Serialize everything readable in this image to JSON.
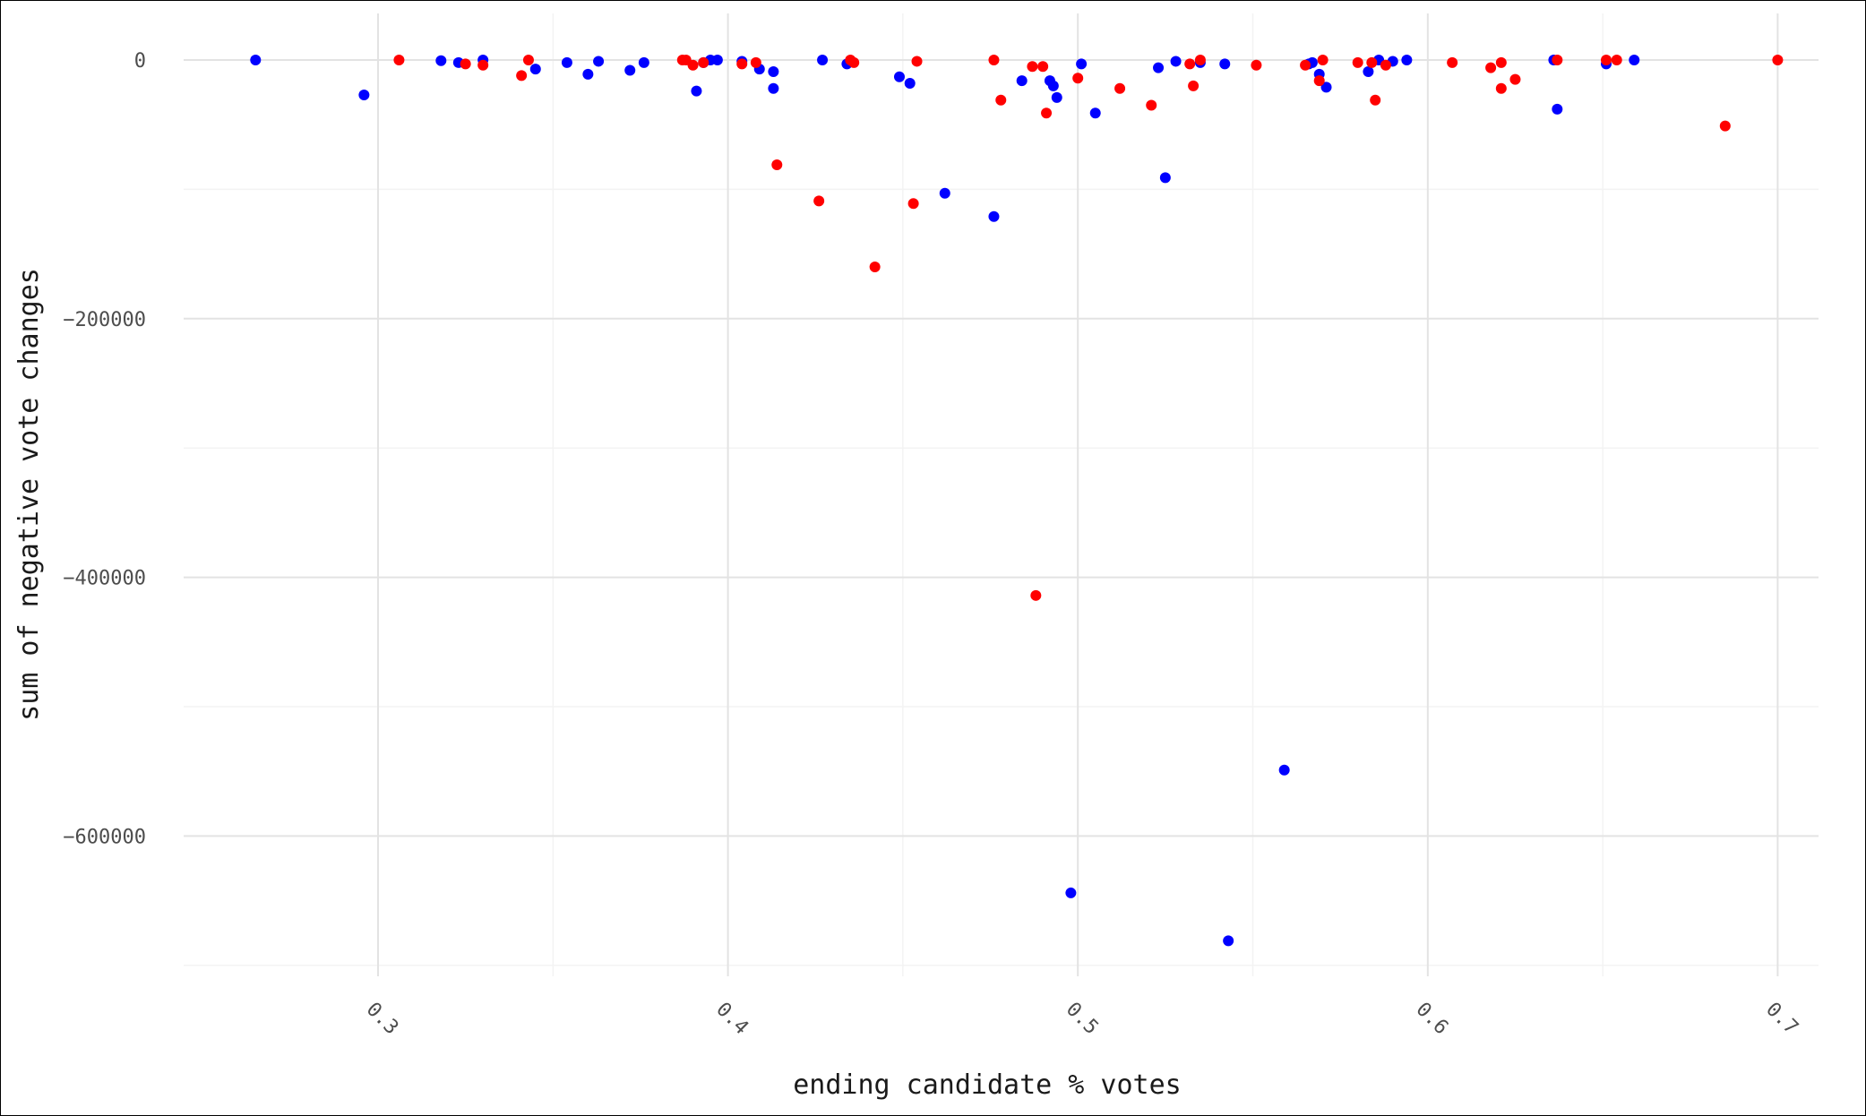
{
  "chart_data": {
    "type": "scatter",
    "xlabel": "ending candidate % votes",
    "ylabel": "sum of negative vote changes",
    "xlim": [
      0.245,
      0.72
    ],
    "ylim": [
      -700000,
      15000
    ],
    "x_major_ticks": [
      0.3,
      0.4,
      0.5,
      0.6,
      0.7
    ],
    "x_tick_labels": [
      "0.3",
      "0.4",
      "0.5",
      "0.6",
      "0.7"
    ],
    "y_major_ticks": [
      0,
      -200000,
      -400000,
      -600000
    ],
    "y_tick_labels": [
      "0",
      "−200000",
      "−400000",
      "−600000"
    ],
    "grid": true,
    "legend": "none",
    "series": [
      {
        "color": "#0000ff",
        "points": [
          [
            0.265,
            0
          ],
          [
            0.296,
            -27000
          ],
          [
            0.318,
            -500
          ],
          [
            0.323,
            -2000
          ],
          [
            0.33,
            0
          ],
          [
            0.345,
            -7000
          ],
          [
            0.354,
            -2000
          ],
          [
            0.36,
            -11000
          ],
          [
            0.363,
            -1000
          ],
          [
            0.372,
            -8000
          ],
          [
            0.376,
            -2000
          ],
          [
            0.391,
            -24000
          ],
          [
            0.393,
            -2000
          ],
          [
            0.395,
            0
          ],
          [
            0.397,
            0
          ],
          [
            0.404,
            -1000
          ],
          [
            0.409,
            -7000
          ],
          [
            0.413,
            -9000
          ],
          [
            0.413,
            -22000
          ],
          [
            0.427,
            0
          ],
          [
            0.434,
            -3000
          ],
          [
            0.449,
            -13000
          ],
          [
            0.452,
            -18000
          ],
          [
            0.462,
            -103000
          ],
          [
            0.476,
            -121000
          ],
          [
            0.484,
            -16000
          ],
          [
            0.492,
            -16000
          ],
          [
            0.493,
            -20000
          ],
          [
            0.494,
            -29000
          ],
          [
            0.498,
            -644000
          ],
          [
            0.501,
            -3000
          ],
          [
            0.505,
            -41000
          ],
          [
            0.523,
            -6000
          ],
          [
            0.525,
            -91000
          ],
          [
            0.528,
            -1000
          ],
          [
            0.535,
            -2000
          ],
          [
            0.542,
            -3000
          ],
          [
            0.543,
            -681000
          ],
          [
            0.559,
            -549000
          ],
          [
            0.566,
            -3000
          ],
          [
            0.567,
            -2000
          ],
          [
            0.569,
            -11000
          ],
          [
            0.571,
            -21000
          ],
          [
            0.583,
            -9000
          ],
          [
            0.586,
            0
          ],
          [
            0.59,
            -1000
          ],
          [
            0.594,
            0
          ],
          [
            0.636,
            0
          ],
          [
            0.637,
            -38000
          ],
          [
            0.651,
            -3000
          ],
          [
            0.659,
            0
          ]
        ]
      },
      {
        "color": "#ff0000",
        "points": [
          [
            0.306,
            0
          ],
          [
            0.325,
            -3000
          ],
          [
            0.33,
            -4000
          ],
          [
            0.341,
            -12000
          ],
          [
            0.343,
            0
          ],
          [
            0.387,
            0
          ],
          [
            0.388,
            0
          ],
          [
            0.39,
            -4000
          ],
          [
            0.393,
            -2000
          ],
          [
            0.404,
            -3000
          ],
          [
            0.408,
            -2000
          ],
          [
            0.414,
            -81000
          ],
          [
            0.426,
            -109000
          ],
          [
            0.435,
            0
          ],
          [
            0.436,
            -2000
          ],
          [
            0.442,
            -160000
          ],
          [
            0.453,
            -111000
          ],
          [
            0.454,
            -1000
          ],
          [
            0.476,
            0
          ],
          [
            0.478,
            -31000
          ],
          [
            0.487,
            -5000
          ],
          [
            0.488,
            -414000
          ],
          [
            0.49,
            -5000
          ],
          [
            0.491,
            -41000
          ],
          [
            0.5,
            -14000
          ],
          [
            0.512,
            -22000
          ],
          [
            0.521,
            -35000
          ],
          [
            0.532,
            -3000
          ],
          [
            0.533,
            -20000
          ],
          [
            0.535,
            0
          ],
          [
            0.551,
            -4000
          ],
          [
            0.565,
            -4000
          ],
          [
            0.569,
            -16000
          ],
          [
            0.57,
            0
          ],
          [
            0.58,
            -2000
          ],
          [
            0.584,
            -2000
          ],
          [
            0.585,
            -31000
          ],
          [
            0.588,
            -4000
          ],
          [
            0.607,
            -2000
          ],
          [
            0.618,
            -6000
          ],
          [
            0.621,
            -2000
          ],
          [
            0.621,
            -22000
          ],
          [
            0.625,
            -15000
          ],
          [
            0.637,
            0
          ],
          [
            0.651,
            0
          ],
          [
            0.654,
            0
          ],
          [
            0.685,
            -51000
          ],
          [
            0.7,
            0
          ]
        ]
      }
    ]
  }
}
